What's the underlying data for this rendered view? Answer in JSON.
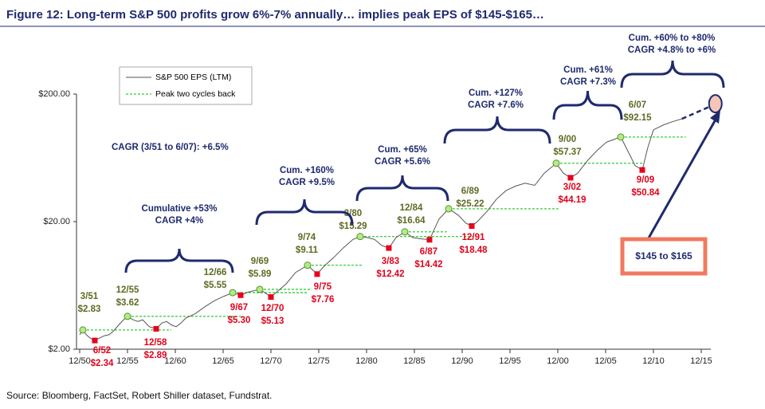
{
  "chart_data": {
    "type": "line",
    "title": "Figure 12: Long-term S&P 500 profits grow 6%-7% annually… implies peak EPS of $145-$165…",
    "source": "Source: Bloomberg, FactSet, Robert Shiller dataset, Fundstrat.",
    "log_y": true,
    "xlim": [
      1950.92,
      2015.92
    ],
    "ylim": [
      2,
      200
    ],
    "yticks": [
      {
        "value": 2,
        "label": "$2.00"
      },
      {
        "value": 20,
        "label": "$20.00"
      },
      {
        "value": 200,
        "label": "$200.00"
      }
    ],
    "xticks": [
      {
        "value": 1950.92,
        "label": "12/50"
      },
      {
        "value": 1955.92,
        "label": "12/55"
      },
      {
        "value": 1960.92,
        "label": "12/60"
      },
      {
        "value": 1965.92,
        "label": "12/65"
      },
      {
        "value": 1970.92,
        "label": "12/70"
      },
      {
        "value": 1975.92,
        "label": "12/75"
      },
      {
        "value": 1980.92,
        "label": "12/80"
      },
      {
        "value": 1985.92,
        "label": "12/85"
      },
      {
        "value": 1990.92,
        "label": "12/90"
      },
      {
        "value": 1995.92,
        "label": "12/95"
      },
      {
        "value": 2000.92,
        "label": "12/00"
      },
      {
        "value": 2005.92,
        "label": "12/05"
      },
      {
        "value": 2010.92,
        "label": "12/10"
      },
      {
        "value": 2015.92,
        "label": "12/15"
      }
    ],
    "legend": "upper left",
    "series": [
      {
        "name": "S&P 500 EPS (LTM)",
        "color": "#555555",
        "x": [
          1950.92,
          1951.25,
          1951.6,
          1952.0,
          1952.5,
          1953.0,
          1953.5,
          1954.0,
          1954.5,
          1955.0,
          1955.5,
          1955.92,
          1956.5,
          1957.0,
          1957.5,
          1958.2,
          1958.92,
          1959.5,
          1960.0,
          1960.5,
          1961.0,
          1961.5,
          1962.0,
          1963.0,
          1964.0,
          1965.0,
          1966.0,
          1966.92,
          1967.75,
          1968.5,
          1969.75,
          1970.5,
          1970.92,
          1971.5,
          1972.5,
          1973.5,
          1974.75,
          1975.75,
          1976.5,
          1977.5,
          1978.5,
          1979.5,
          1980.25,
          1981.0,
          1981.75,
          1982.5,
          1983.25,
          1984.0,
          1984.92,
          1985.75,
          1986.5,
          1987.5,
          1988.5,
          1989.5,
          1990.5,
          1991.3,
          1991.92,
          1992.5,
          1993.5,
          1994.5,
          1995.5,
          1996.5,
          1997.5,
          1998.5,
          1999.5,
          2000.75,
          2001.5,
          2002.25,
          2003.0,
          2004.0,
          2005.0,
          2006.0,
          2007.5,
          2008.3,
          2009.0,
          2009.75,
          2010.3,
          2010.92,
          2012.0,
          2013.0,
          2013.9
        ],
        "values": [
          2.6,
          2.83,
          2.6,
          2.45,
          2.34,
          2.45,
          2.55,
          2.6,
          2.8,
          3.1,
          3.4,
          3.62,
          3.4,
          3.3,
          3.4,
          3.0,
          2.89,
          3.2,
          3.3,
          3.1,
          3.0,
          3.2,
          3.5,
          3.8,
          4.3,
          4.8,
          5.2,
          5.55,
          5.3,
          5.6,
          5.89,
          5.4,
          5.13,
          5.6,
          6.5,
          8.0,
          9.11,
          7.76,
          9.0,
          10.5,
          12.5,
          14.5,
          15.29,
          15.0,
          14.5,
          13.0,
          12.42,
          15.0,
          16.64,
          15.0,
          14.7,
          14.42,
          21.0,
          25.22,
          22.5,
          19.5,
          18.48,
          20.0,
          24.0,
          30.0,
          35.0,
          38.0,
          40.0,
          38.5,
          48.0,
          57.37,
          48.0,
          44.19,
          48.0,
          60.0,
          72.0,
          84.0,
          92.15,
          70.0,
          55.0,
          50.84,
          75.0,
          105.0,
          115.0,
          122.0,
          128.0
        ]
      },
      {
        "name": "Peak two cycles back",
        "color": "#33cc33",
        "segments": [
          {
            "x": [
              1951.25,
              1960.5
            ],
            "value": 2.83
          },
          {
            "x": [
              1955.92,
              1967.8
            ],
            "value": 3.62
          },
          {
            "x": [
              1966.92,
              1974.8
            ],
            "value": 5.55
          },
          {
            "x": [
              1969.75,
              1975.2
            ],
            "value": 5.89
          },
          {
            "x": [
              1974.75,
              1980.5
            ],
            "value": 9.11
          },
          {
            "x": [
              1980.25,
              1992.0
            ],
            "value": 15.29
          },
          {
            "x": [
              1984.92,
              1989.3
            ],
            "value": 16.64
          },
          {
            "x": [
              1989.5,
              2001.0
            ],
            "value": 25.22
          },
          {
            "x": [
              2000.75,
              2009.8
            ],
            "value": 57.37
          },
          {
            "x": [
              2007.5,
              2014.3
            ],
            "value": 92.15
          }
        ]
      }
    ],
    "peaks": {
      "dates": [
        "3/51",
        "12/55",
        "12/66",
        "9/69",
        "9/74",
        "3/80",
        "12/84",
        "6/89",
        "9/00",
        "6/07"
      ],
      "x": [
        1951.25,
        1955.92,
        1966.92,
        1969.75,
        1974.75,
        1980.25,
        1984.92,
        1989.5,
        2000.75,
        2007.5
      ],
      "values": [
        2.83,
        3.62,
        5.55,
        5.89,
        9.11,
        15.29,
        16.64,
        25.22,
        57.37,
        92.15
      ],
      "value_labels": [
        "$2.83",
        "$3.62",
        "$5.55",
        "$5.89",
        "$9.11",
        "$15.29",
        "$16.64",
        "$25.22",
        "$57.37",
        "$92.15"
      ]
    },
    "troughs": {
      "dates": [
        "6/52",
        "12/58",
        "9/67",
        "12/70",
        "9/75",
        "3/83",
        "6/87",
        "12/91",
        "3/02",
        "9/09"
      ],
      "x": [
        1952.5,
        1958.92,
        1967.75,
        1970.92,
        1975.75,
        1983.25,
        1987.5,
        1991.92,
        2002.25,
        2009.75
      ],
      "values": [
        2.34,
        2.89,
        5.3,
        5.13,
        7.76,
        12.42,
        14.42,
        18.48,
        44.19,
        50.84
      ],
      "value_labels": [
        "$2.34",
        "$2.89",
        "$5.30",
        "$5.13",
        "$7.76",
        "$12.42",
        "$14.42",
        "$18.48",
        "$44.19",
        "$50.84"
      ]
    },
    "projection": {
      "x": [
        2013.9,
        2017.4
      ],
      "values": [
        128,
        168
      ]
    },
    "target_label": "$145 to $165",
    "cagr_note": "CAGR (3/51 to 6/07): +6.5%",
    "annotations": [
      [
        "Cumulative +53%",
        "CAGR +4%"
      ],
      [
        "Cum. +160%",
        "CAGR +9.5%"
      ],
      [
        "Cum. +65%",
        "CAGR +5.6%"
      ],
      [
        "Cum. +127%",
        "CAGR +7.6%"
      ],
      [
        "Cum. +61%",
        "CAGR +7.3%"
      ],
      [
        "Cum. +60% to +80%",
        "CAGR +4.8% to +6%"
      ]
    ]
  }
}
